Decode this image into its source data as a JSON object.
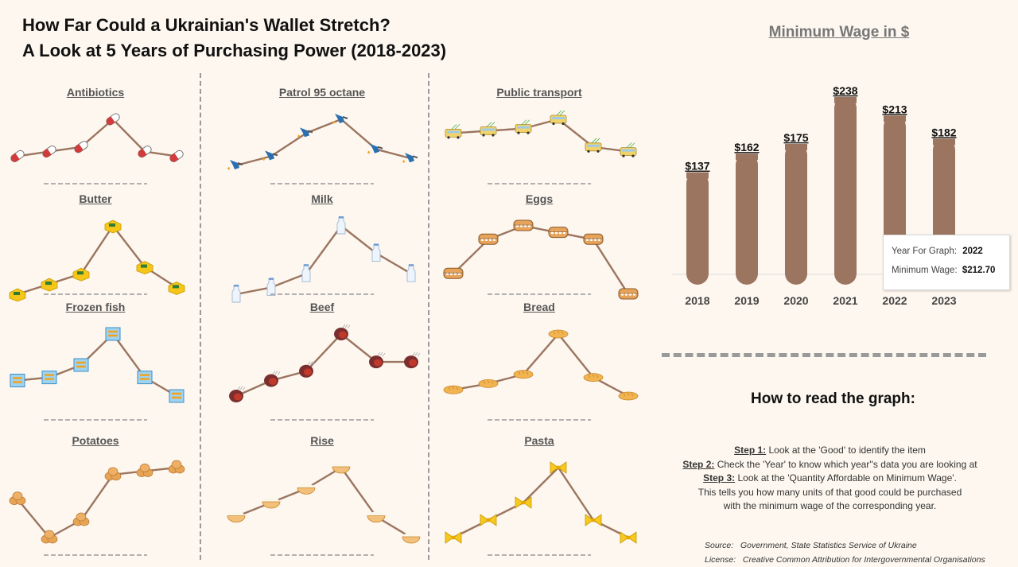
{
  "title": {
    "line1": "How Far Could a Ukrainian's Wallet Stretch?",
    "line2": "A Look at 5 Years of Purchasing Power (2018-2023)"
  },
  "colors": {
    "line": "#9b7560",
    "bar": "#9b7560",
    "background": "#fdf7ef",
    "separator": "#9a9a9a"
  },
  "goods": [
    {
      "id": "antibiotics",
      "label": "Antibiotics",
      "icon": "pill-icon"
    },
    {
      "id": "petrol",
      "label": "Patrol 95 octane",
      "icon": "fuel-nozzle-icon"
    },
    {
      "id": "transport",
      "label": "Public transport",
      "icon": "trolleybus-icon"
    },
    {
      "id": "butter",
      "label": "Butter",
      "icon": "butter-icon"
    },
    {
      "id": "milk",
      "label": "Milk",
      "icon": "milk-bottle-icon"
    },
    {
      "id": "eggs",
      "label": "Eggs",
      "icon": "egg-carton-icon"
    },
    {
      "id": "fish",
      "label": "Frozen fish",
      "icon": "frozen-fish-icon"
    },
    {
      "id": "beef",
      "label": "Beef",
      "icon": "beef-icon"
    },
    {
      "id": "bread",
      "label": "Bread",
      "icon": "bread-icon"
    },
    {
      "id": "potatoes",
      "label": "Potatoes",
      "icon": "potato-icon"
    },
    {
      "id": "rice",
      "label": "Rise",
      "icon": "rice-bowl-icon"
    },
    {
      "id": "pasta",
      "label": "Pasta",
      "icon": "pasta-bow-icon"
    }
  ],
  "chart_data": [
    {
      "type": "line",
      "name": "Antibiotics",
      "x": [
        2018,
        2019,
        2020,
        2021,
        2022,
        2023
      ],
      "values": [
        0.2,
        0.3,
        0.4,
        1.0,
        0.3,
        0.2
      ],
      "ylim": [
        0,
        1
      ]
    },
    {
      "type": "line",
      "name": "Patrol 95 octane",
      "x": [
        2018,
        2019,
        2020,
        2021,
        2022,
        2023
      ],
      "values": [
        0.0,
        0.2,
        0.7,
        1.0,
        0.35,
        0.15
      ],
      "ylim": [
        0,
        1
      ]
    },
    {
      "type": "line",
      "name": "Public transport",
      "x": [
        2018,
        2019,
        2020,
        2021,
        2022,
        2023
      ],
      "values": [
        0.7,
        0.75,
        0.8,
        1.0,
        0.4,
        0.3
      ],
      "ylim": [
        0,
        1
      ]
    },
    {
      "type": "line",
      "name": "Butter",
      "x": [
        2018,
        2019,
        2020,
        2021,
        2022,
        2023
      ],
      "values": [
        0.0,
        0.15,
        0.3,
        1.0,
        0.4,
        0.1
      ],
      "ylim": [
        0,
        1
      ]
    },
    {
      "type": "line",
      "name": "Milk",
      "x": [
        2018,
        2019,
        2020,
        2021,
        2022,
        2023
      ],
      "values": [
        0.0,
        0.1,
        0.3,
        1.0,
        0.6,
        0.3
      ],
      "ylim": [
        0,
        1
      ]
    },
    {
      "type": "line",
      "name": "Eggs",
      "x": [
        2018,
        2019,
        2020,
        2021,
        2022,
        2023
      ],
      "values": [
        0.3,
        0.8,
        1.0,
        0.9,
        0.8,
        0.0
      ],
      "ylim": [
        0,
        1
      ]
    },
    {
      "type": "line",
      "name": "Frozen fish",
      "x": [
        2018,
        2019,
        2020,
        2021,
        2022,
        2023
      ],
      "values": [
        0.25,
        0.3,
        0.5,
        1.0,
        0.3,
        0.0
      ],
      "ylim": [
        0,
        1
      ]
    },
    {
      "type": "line",
      "name": "Beef",
      "x": [
        2018,
        2019,
        2020,
        2021,
        2022,
        2023
      ],
      "values": [
        0.0,
        0.25,
        0.4,
        1.0,
        0.55,
        0.55
      ],
      "ylim": [
        0,
        1
      ]
    },
    {
      "type": "line",
      "name": "Bread",
      "x": [
        2018,
        2019,
        2020,
        2021,
        2022,
        2023
      ],
      "values": [
        0.1,
        0.2,
        0.35,
        1.0,
        0.3,
        0.0
      ],
      "ylim": [
        0,
        1
      ]
    },
    {
      "type": "line",
      "name": "Potatoes",
      "x": [
        2018,
        2019,
        2020,
        2021,
        2022,
        2023
      ],
      "values": [
        0.55,
        0.0,
        0.25,
        0.9,
        0.95,
        1.0
      ],
      "ylim": [
        0,
        1
      ]
    },
    {
      "type": "line",
      "name": "Rise",
      "x": [
        2018,
        2019,
        2020,
        2021,
        2022,
        2023
      ],
      "values": [
        0.3,
        0.5,
        0.7,
        1.0,
        0.3,
        0.0
      ],
      "ylim": [
        0,
        1
      ]
    },
    {
      "type": "line",
      "name": "Pasta",
      "x": [
        2018,
        2019,
        2020,
        2021,
        2022,
        2023
      ],
      "values": [
        0.0,
        0.25,
        0.5,
        1.0,
        0.25,
        0.0
      ],
      "ylim": [
        0,
        1
      ]
    },
    {
      "type": "bar",
      "title": "Minimum Wage in $",
      "categories": [
        "2018",
        "2019",
        "2020",
        "2021",
        "2022",
        "2023"
      ],
      "values": [
        137,
        162,
        175,
        238,
        213,
        182
      ],
      "data_labels": [
        "$137",
        "$162",
        "$175",
        "$238",
        "$213",
        "$182"
      ],
      "ylim": [
        0,
        240
      ]
    }
  ],
  "tooltip": {
    "year_label": "Year For Graph:",
    "year_value": "2022",
    "wage_label": "Minimum Wage:",
    "wage_value": "$212.70"
  },
  "how_to": {
    "title": "How to read the graph:",
    "step1_label": "Step 1:",
    "step1_text": " Look at the 'Good' to identify the item",
    "step2_label": "Step 2:",
    "step2_text": " Check the 'Year' to know which year''s data you are looking at",
    "step3_label": "Step 3:",
    "step3_text": " Look at the 'Quantity Affordable on Minimum Wage'.",
    "line4": "This tells you how many units of that good could be purchased",
    "line5": "with the minimum wage of the corresponding year."
  },
  "footer": {
    "source_label": "Source:",
    "source_text": "Government, State Statistics Service of Ukraine",
    "license_label": "License:",
    "license_text": "Creative Common Attribution for Intergovernmental Organisations"
  }
}
